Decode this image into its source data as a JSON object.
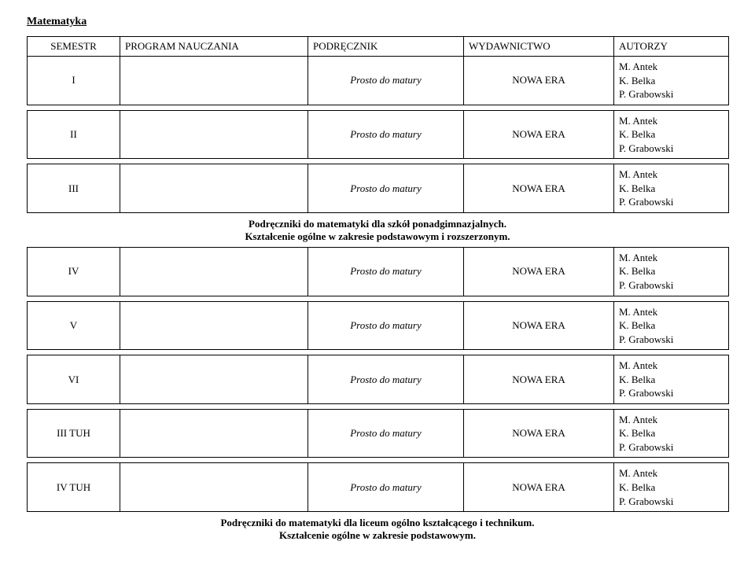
{
  "subject_title": "Matematyka",
  "columns": {
    "semester": "SEMESTR",
    "program": "PROGRAM NAUCZANIA",
    "textbook": "PODRĘCZNIK",
    "publisher": "WYDAWNICTWO",
    "authors": "AUTORZY"
  },
  "col_widths": {
    "semester": "118px",
    "program": "239px",
    "textbook": "198px",
    "publisher": "191px",
    "authors": "146px"
  },
  "rows_group1": [
    {
      "semester": "I",
      "textbook": "Prosto do matury",
      "publisher": "NOWA ERA",
      "authors": [
        "M. Antek",
        "K. Belka",
        "P. Grabowski"
      ]
    },
    {
      "semester": "II",
      "textbook": "Prosto do matury",
      "publisher": "NOWA ERA",
      "authors": [
        "M. Antek",
        "K. Belka",
        "P. Grabowski"
      ]
    },
    {
      "semester": "III",
      "textbook": "Prosto do matury",
      "publisher": "NOWA ERA",
      "authors": [
        "M. Antek",
        "K. Belka",
        "P. Grabowski"
      ]
    }
  ],
  "note1": {
    "line1": "Podręczniki do matematyki dla szkół ponadgimnazjalnych.",
    "line2": "Kształcenie ogólne w zakresie podstawowym i rozszerzonym."
  },
  "rows_group2": [
    {
      "semester": "IV",
      "textbook": "Prosto do matury",
      "publisher": "NOWA ERA",
      "authors": [
        "M. Antek",
        "K. Belka",
        "P. Grabowski"
      ]
    },
    {
      "semester": "V",
      "textbook": "Prosto do matury",
      "publisher": "NOWA ERA",
      "authors": [
        "M. Antek",
        "K. Belka",
        "P. Grabowski"
      ]
    },
    {
      "semester": "VI",
      "textbook": "Prosto do matury",
      "publisher": "NOWA ERA",
      "authors": [
        "M. Antek",
        "K. Belka",
        "P. Grabowski"
      ]
    },
    {
      "semester": "III TUH",
      "textbook": "Prosto do matury",
      "publisher": "NOWA ERA",
      "authors": [
        "M. Antek",
        "K. Belka",
        "P. Grabowski"
      ]
    },
    {
      "semester": "IV TUH",
      "textbook": "Prosto do matury",
      "publisher": "NOWA ERA",
      "authors": [
        "M. Antek",
        "K. Belka",
        "P. Grabowski"
      ]
    }
  ],
  "note2": {
    "line1": "Podręczniki do matematyki dla liceum ogólno kształcącego i technikum.",
    "line2": "Kształcenie ogólne w zakresie podstawowym."
  }
}
